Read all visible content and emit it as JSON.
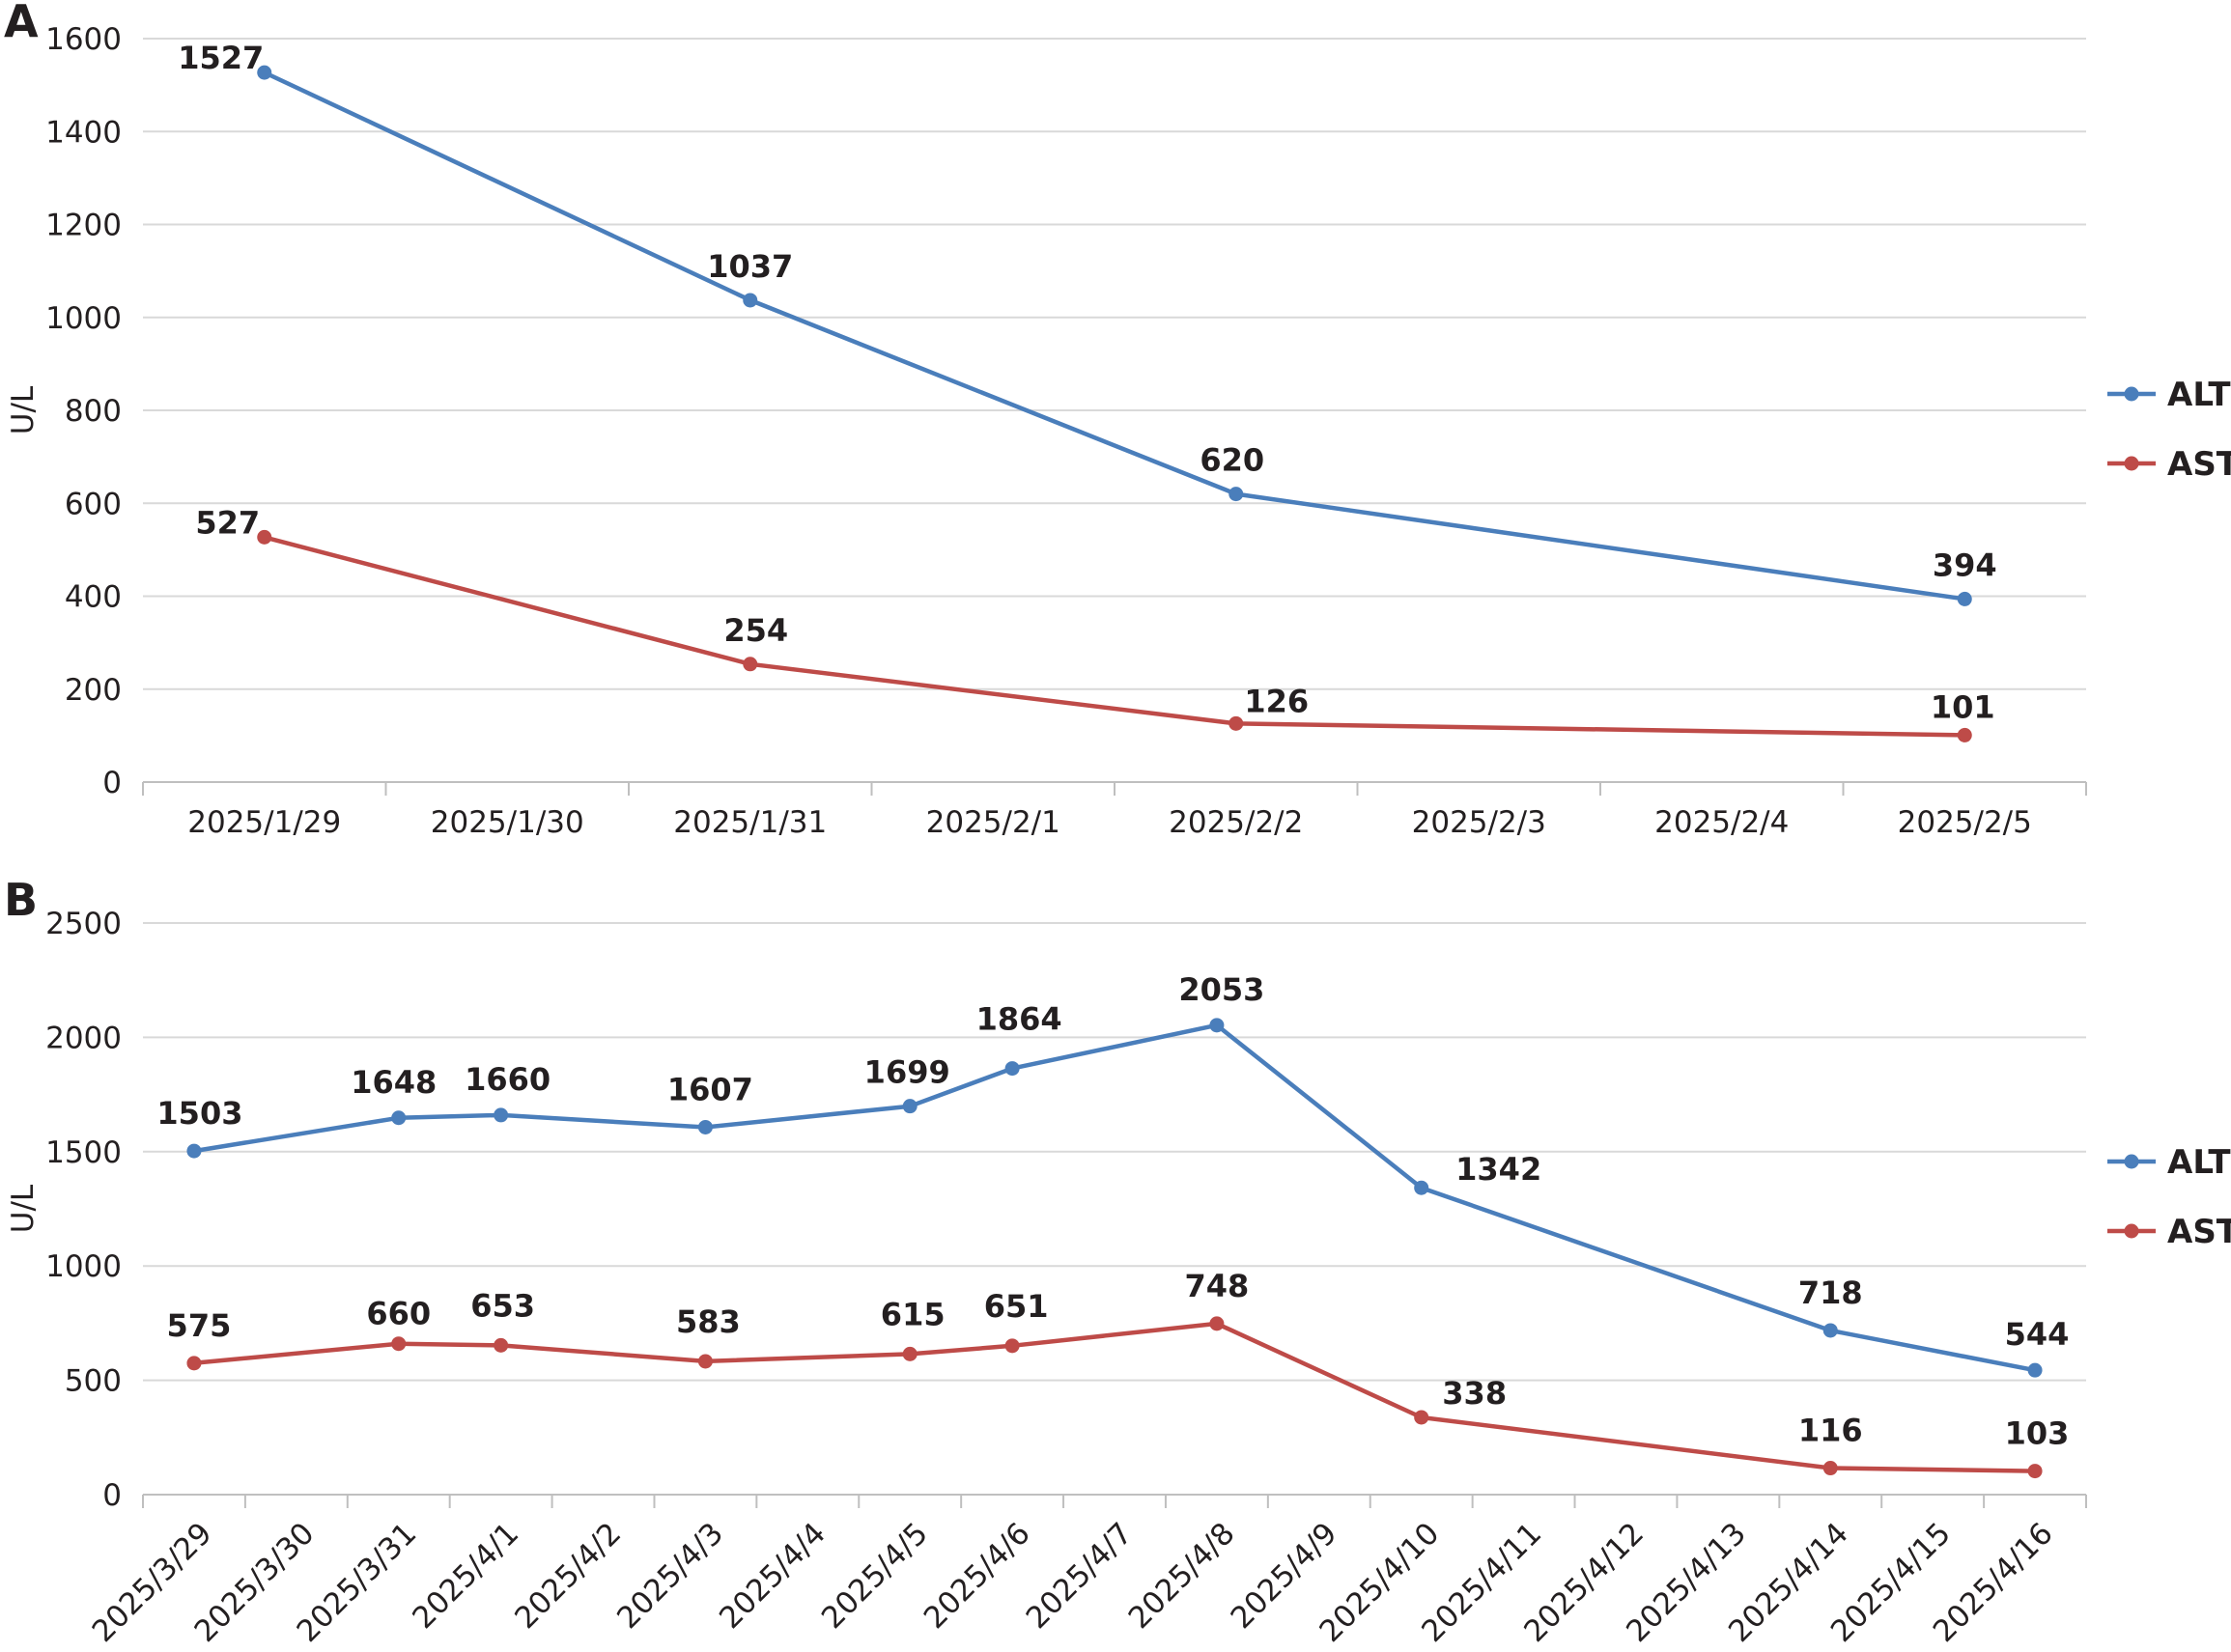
{
  "chart_data": [
    {
      "panel": "A",
      "type": "line",
      "ylabel": "U/L",
      "ylim": [
        0,
        1600
      ],
      "y_ticks": [
        "0",
        "200",
        "400",
        "600",
        "800",
        "1000",
        "1200",
        "1400",
        "1600"
      ],
      "categories": [
        "2025/1/29",
        "2025/1/30",
        "2025/1/31",
        "2025/2/1",
        "2025/2/2",
        "2025/2/3",
        "2025/2/4",
        "2025/2/5"
      ],
      "grid": true,
      "legend": "right",
      "series": [
        {
          "name": "ALT",
          "color": "#4a7ebb",
          "points": [
            {
              "x": "2025/1/29",
              "y": 1527,
              "label": "1527"
            },
            {
              "x": "2025/1/31",
              "y": 1037,
              "label": "1037"
            },
            {
              "x": "2025/2/2",
              "y": 620,
              "label": "620"
            },
            {
              "x": "2025/2/5",
              "y": 394,
              "label": "394"
            }
          ]
        },
        {
          "name": "AST",
          "color": "#be4b48",
          "points": [
            {
              "x": "2025/1/29",
              "y": 527,
              "label": "527"
            },
            {
              "x": "2025/1/31",
              "y": 254,
              "label": "254"
            },
            {
              "x": "2025/2/2",
              "y": 126,
              "label": "126"
            },
            {
              "x": "2025/2/5",
              "y": 101,
              "label": "101"
            }
          ]
        }
      ]
    },
    {
      "panel": "B",
      "type": "line",
      "ylabel": "U/L",
      "ylim": [
        0,
        2500
      ],
      "y_ticks": [
        "0",
        "500",
        "1000",
        "1500",
        "2000",
        "2500"
      ],
      "categories": [
        "2025/3/29",
        "2025/3/30",
        "2025/3/31",
        "2025/4/1",
        "2025/4/2",
        "2025/4/3",
        "2025/4/4",
        "2025/4/5",
        "2025/4/6",
        "2025/4/7",
        "2025/4/8",
        "2025/4/9",
        "2025/4/10",
        "2025/4/11",
        "2025/4/12",
        "2025/4/13",
        "2025/4/14",
        "2025/4/15",
        "2025/4/16"
      ],
      "grid": true,
      "legend": "right",
      "series": [
        {
          "name": "ALT",
          "color": "#4a7ebb",
          "points": [
            {
              "x": "2025/3/29",
              "y": 1503,
              "label": "1503"
            },
            {
              "x": "2025/3/31",
              "y": 1648,
              "label": "1648"
            },
            {
              "x": "2025/4/1",
              "y": 1660,
              "label": "1660"
            },
            {
              "x": "2025/4/3",
              "y": 1607,
              "label": "1607"
            },
            {
              "x": "2025/4/5",
              "y": 1699,
              "label": "1699"
            },
            {
              "x": "2025/4/6",
              "y": 1864,
              "label": "1864"
            },
            {
              "x": "2025/4/8",
              "y": 2053,
              "label": "2053"
            },
            {
              "x": "2025/4/10",
              "y": 1342,
              "label": "1342"
            },
            {
              "x": "2025/4/14",
              "y": 718,
              "label": "718"
            },
            {
              "x": "2025/4/16",
              "y": 544,
              "label": "544"
            }
          ]
        },
        {
          "name": "AST",
          "color": "#be4b48",
          "points": [
            {
              "x": "2025/3/29",
              "y": 575,
              "label": "575"
            },
            {
              "x": "2025/3/31",
              "y": 660,
              "label": "660"
            },
            {
              "x": "2025/4/1",
              "y": 653,
              "label": "653"
            },
            {
              "x": "2025/4/3",
              "y": 583,
              "label": "583"
            },
            {
              "x": "2025/4/5",
              "y": 615,
              "label": "615"
            },
            {
              "x": "2025/4/6",
              "y": 651,
              "label": "651"
            },
            {
              "x": "2025/4/8",
              "y": 748,
              "label": "748"
            },
            {
              "x": "2025/4/10",
              "y": 338,
              "label": "338"
            },
            {
              "x": "2025/4/14",
              "y": 116,
              "label": "116"
            },
            {
              "x": "2025/4/16",
              "y": 103,
              "label": "103"
            }
          ]
        }
      ]
    }
  ]
}
